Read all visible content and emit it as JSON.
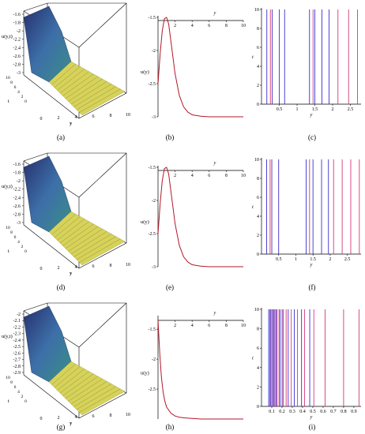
{
  "captions": [
    "(a)",
    "(b)",
    "(c)",
    "(d)",
    "(e)",
    "(f)",
    "(g)",
    "(h)",
    "(i)"
  ],
  "colors": {
    "curve": "#b2182b",
    "line_blue": "#3a2fd0",
    "line_pink": "#d4387a",
    "surface_dark": "#26306e",
    "surface_mid": "#3d6fa8",
    "surface_light": "#d6d25a"
  },
  "chart_data": [
    {
      "panel": "a",
      "type": "surface3d",
      "zlabel": "u(y,t)",
      "xlabel": "y",
      "ylabel": "t",
      "z_ticks": [
        "-1.6",
        "-1.8",
        "-2",
        "-2.2",
        "-2.4",
        "-2.6",
        "-2.8",
        "-3"
      ],
      "y_ticks": [
        "0",
        "2",
        "4",
        "6",
        "8",
        "10"
      ],
      "t_ticks": [
        "0",
        "2",
        "4",
        "6",
        "8",
        "10"
      ],
      "zlim": [
        -3,
        -1.5
      ],
      "ylim": [
        0,
        10
      ],
      "tlim": [
        0,
        10
      ]
    },
    {
      "panel": "b",
      "type": "line",
      "xlabel": "y",
      "ylabel": "u(y)",
      "x_ticks": [
        "2",
        "4",
        "6",
        "8",
        "10"
      ],
      "y_ticks": [
        "-1.5",
        "-2",
        "-2.5",
        "-3"
      ],
      "xlim": [
        0,
        10
      ],
      "ylim": [
        -3,
        -1.5
      ],
      "x": [
        0,
        0.25,
        0.5,
        0.75,
        1,
        1.25,
        1.5,
        1.75,
        2,
        2.5,
        3,
        3.5,
        4,
        5,
        6,
        7,
        8,
        10
      ],
      "y": [
        -2.5,
        -2.05,
        -1.7,
        -1.52,
        -1.5,
        -1.6,
        -1.85,
        -2.1,
        -2.35,
        -2.68,
        -2.85,
        -2.93,
        -2.97,
        -2.99,
        -3.0,
        -3.0,
        -3.0,
        -3.0
      ]
    },
    {
      "panel": "c",
      "type": "lines",
      "xlabel": "y",
      "ylabel": "t",
      "x_ticks": [
        "0.5",
        "1",
        "1.5",
        "2",
        "2.5"
      ],
      "y_ticks": [
        "0",
        "2",
        "4",
        "6",
        "8",
        "10"
      ],
      "xlim": [
        0,
        2.8
      ],
      "ylim": [
        0,
        10
      ],
      "blue_x": [
        0.15,
        0.3,
        0.5,
        0.65,
        1.35,
        1.5,
        1.7,
        1.9
      ],
      "pink_x": [
        0.25,
        1.45,
        2.15,
        2.45,
        2.7
      ]
    },
    {
      "panel": "d",
      "type": "surface3d",
      "zlabel": "u(y,t)",
      "xlabel": "y",
      "ylabel": "t",
      "z_ticks": [
        "-1.6",
        "-1.8",
        "-2",
        "-2.2",
        "-2.4",
        "-2.6",
        "-2.8",
        "-3"
      ],
      "y_ticks": [
        "0",
        "2",
        "4",
        "6",
        "8",
        "10"
      ],
      "t_ticks": [
        "0",
        "2",
        "4",
        "6",
        "8",
        "10"
      ],
      "zlim": [
        -3,
        -1.5
      ],
      "ylim": [
        0,
        10
      ],
      "tlim": [
        0,
        10
      ]
    },
    {
      "panel": "e",
      "type": "line",
      "xlabel": "y",
      "ylabel": "u(y)",
      "x_ticks": [
        "2",
        "4",
        "6",
        "8",
        "10"
      ],
      "y_ticks": [
        "-1.5",
        "-2",
        "-2.5",
        "-3"
      ],
      "xlim": [
        0,
        10
      ],
      "ylim": [
        -3,
        -1.5
      ],
      "x": [
        0,
        0.25,
        0.5,
        0.75,
        1,
        1.25,
        1.5,
        1.75,
        2,
        2.5,
        3,
        3.5,
        4,
        5,
        6,
        7,
        8,
        10
      ],
      "y": [
        -2.5,
        -2.05,
        -1.7,
        -1.52,
        -1.5,
        -1.6,
        -1.85,
        -2.1,
        -2.35,
        -2.68,
        -2.85,
        -2.93,
        -2.97,
        -2.99,
        -3.0,
        -3.0,
        -3.0,
        -3.0
      ]
    },
    {
      "panel": "f",
      "type": "lines",
      "xlabel": "y",
      "ylabel": "t",
      "x_ticks": [
        "0.5",
        "1",
        "1.5",
        "2",
        "2.5"
      ],
      "y_ticks": [
        "0",
        "2",
        "4",
        "6",
        "8",
        "10"
      ],
      "xlim": [
        0,
        2.9
      ],
      "ylim": [
        0,
        10
      ],
      "blue_x": [
        0.15,
        0.3,
        0.5,
        1.3,
        1.5,
        1.75,
        1.95
      ],
      "pink_x": [
        0.25,
        1.4,
        2.1,
        2.35,
        2.6,
        2.85
      ]
    },
    {
      "panel": "g",
      "type": "surface3d",
      "zlabel": "u(y,t)",
      "xlabel": "y",
      "ylabel": "t",
      "z_ticks": [
        "-2",
        "-2.1",
        "-2.2",
        "-2.3",
        "-2.4",
        "-2.5",
        "-2.6",
        "-2.7",
        "-2.8",
        "-2.9"
      ],
      "y_ticks": [
        "0",
        "2",
        "4",
        "6",
        "8",
        "10"
      ],
      "t_ticks": [
        "0",
        "2",
        "4",
        "6",
        "8",
        "10"
      ],
      "zlim": [
        -3,
        -2
      ],
      "ylim": [
        0,
        10
      ],
      "tlim": [
        0,
        10
      ]
    },
    {
      "panel": "h",
      "type": "line",
      "xlabel": "y",
      "ylabel": "u(y)",
      "x_ticks": [
        "2",
        "4",
        "6",
        "8",
        "10"
      ],
      "y_ticks": [
        "-1.5",
        "-2",
        "-2.5"
      ],
      "xlim": [
        0,
        10
      ],
      "ylim": [
        -3,
        -1.3
      ],
      "x": [
        0,
        0.2,
        0.4,
        0.6,
        0.8,
        1,
        1.5,
        2,
        2.5,
        3,
        4,
        5,
        6,
        8,
        10
      ],
      "y": [
        -1.35,
        -1.9,
        -2.3,
        -2.55,
        -2.7,
        -2.8,
        -2.9,
        -2.95,
        -2.97,
        -2.98,
        -2.99,
        -3.0,
        -3.0,
        -3.0,
        -3.0
      ]
    },
    {
      "panel": "i",
      "type": "lines",
      "xlabel": "y",
      "ylabel": "t",
      "x_ticks": [
        "0.1",
        "0.2",
        "0.3",
        "0.4",
        "0.5",
        "0.6",
        "0.7",
        "0.8",
        "0.9"
      ],
      "y_ticks": [
        "0",
        "2",
        "4",
        "6",
        "8",
        "10"
      ],
      "xlim": [
        0,
        0.97
      ],
      "ylim": [
        0,
        10
      ],
      "blue_x": [
        0.07,
        0.09,
        0.11,
        0.13,
        0.15,
        0.18,
        0.21,
        0.26,
        0.32,
        0.39,
        0.47
      ],
      "pink_x": [
        0.08,
        0.1,
        0.12,
        0.14,
        0.17,
        0.2,
        0.24,
        0.29,
        0.35,
        0.42,
        0.51,
        0.62,
        0.8,
        0.95
      ]
    }
  ]
}
